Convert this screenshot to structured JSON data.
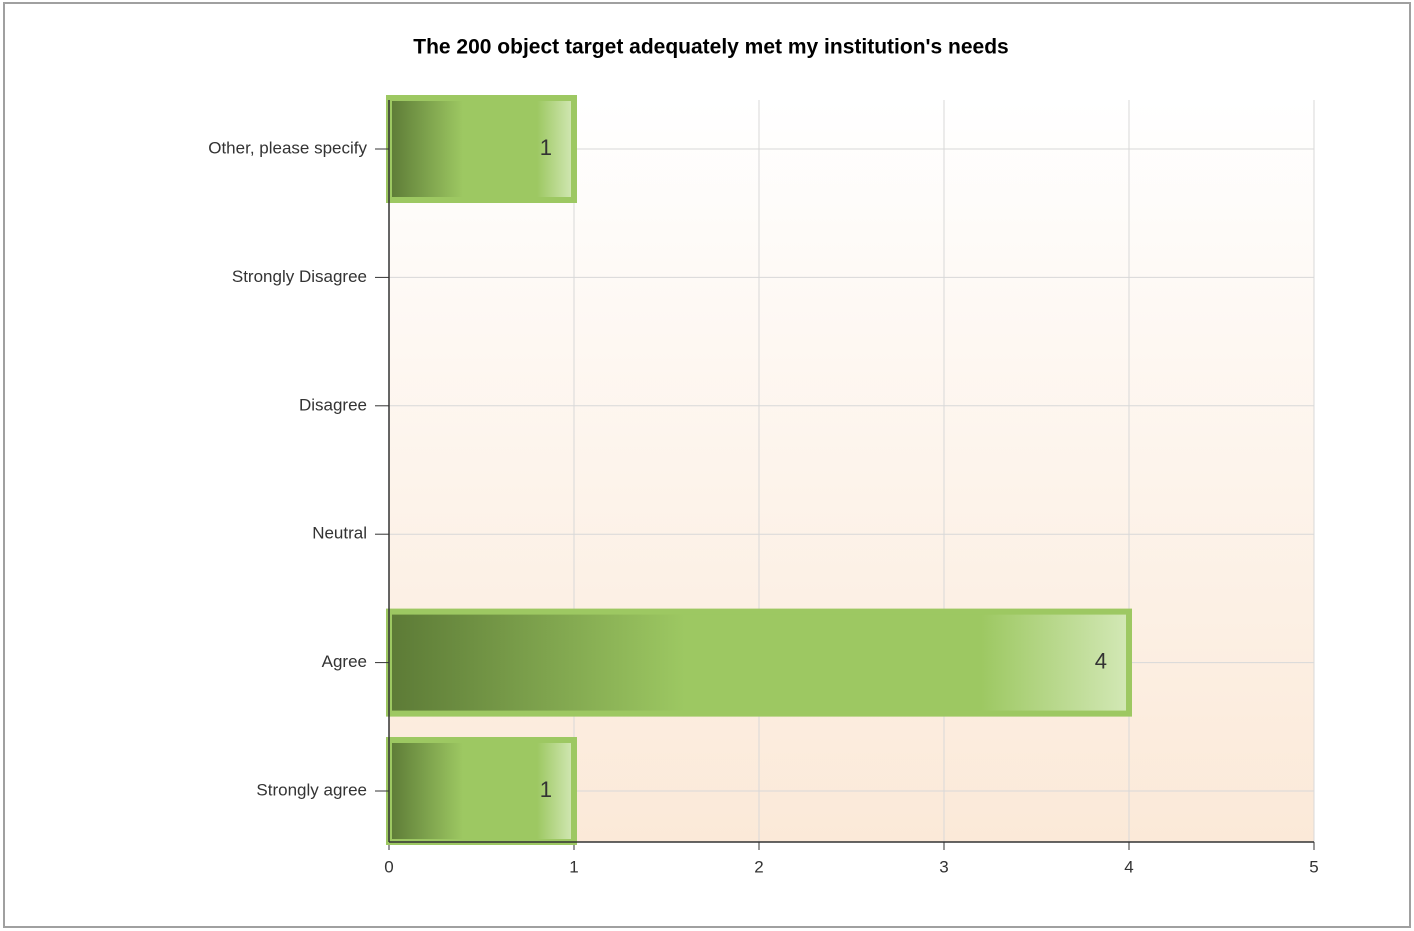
{
  "chart_data": {
    "type": "barh",
    "title": "The 200 object target adequately met my institution's needs",
    "categories": [
      "Other, please specify",
      "Strongly Disagree",
      "Disagree",
      "Neutral",
      "Agree",
      "Strongly agree"
    ],
    "values": [
      1,
      0,
      0,
      0,
      4,
      1
    ],
    "color": "#9dc862",
    "xlim": [
      0,
      5
    ],
    "xticks": [
      0,
      1,
      2,
      3,
      4,
      5
    ],
    "grid": true
  }
}
